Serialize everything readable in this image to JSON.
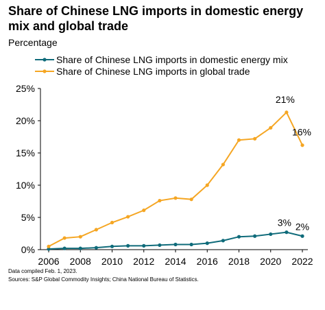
{
  "title": "Share of Chinese LNG imports in domestic energy mix and global trade",
  "subtitle": "Percentage",
  "footnotes": [
    "Data compiled Feb. 1, 2023.",
    "Sources: S&P Global Commodity Insights; China National Bureau of Statistics."
  ],
  "chart_data": {
    "type": "line",
    "title": "Share of Chinese LNG imports in domestic energy mix and global trade",
    "ylabel": "Percentage",
    "xlabel": "",
    "x": [
      2006,
      2007,
      2008,
      2009,
      2010,
      2011,
      2012,
      2013,
      2014,
      2015,
      2016,
      2017,
      2018,
      2019,
      2020,
      2021,
      2022
    ],
    "xticks": [
      "2006",
      "2008",
      "2010",
      "2012",
      "2014",
      "2016",
      "2018",
      "2020",
      "2022"
    ],
    "yticks": [
      "0%",
      "5%",
      "10%",
      "15%",
      "20%",
      "25%"
    ],
    "ylim": [
      0,
      25
    ],
    "grid": false,
    "legend_position": "top-left",
    "series": [
      {
        "name": "Share of Chinese LNG imports in domestic energy mix",
        "color": "#0f6b7a",
        "values": [
          0.1,
          0.2,
          0.2,
          0.3,
          0.5,
          0.6,
          0.6,
          0.7,
          0.8,
          0.8,
          1.0,
          1.4,
          2.0,
          2.1,
          2.4,
          2.7,
          2.1
        ],
        "annotations": [
          {
            "x": 2021,
            "text": "3%"
          },
          {
            "x": 2022,
            "text": "2%"
          }
        ]
      },
      {
        "name": "Share of Chinese LNG imports in global trade",
        "color": "#f5a623",
        "values": [
          0.5,
          1.8,
          2.0,
          3.1,
          4.2,
          5.1,
          6.1,
          7.6,
          8.0,
          7.8,
          10.0,
          13.2,
          17.0,
          17.2,
          18.9,
          21.3,
          16.2
        ],
        "annotations": [
          {
            "x": 2021,
            "text": "21%"
          },
          {
            "x": 2022,
            "text": "16%"
          }
        ]
      }
    ]
  }
}
